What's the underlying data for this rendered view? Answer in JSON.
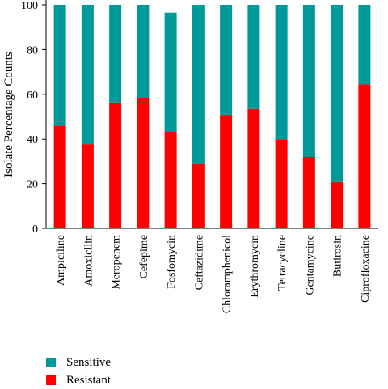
{
  "chart_data": {
    "type": "bar",
    "stacked": true,
    "ylabel": "Isolate Percentage Counts",
    "xlabel": "",
    "ylim": [
      0,
      100
    ],
    "yticks": [
      0,
      20,
      40,
      60,
      80,
      100
    ],
    "grid": false,
    "legend_position": "bottom-left",
    "categories": [
      "Ampiciline",
      "Amoxicllin",
      "Meropenem",
      "Cefepime",
      "Fosfomycin",
      "Ceftazidime",
      "Chloramphenicol",
      "Erythromycin",
      "Tetracycline",
      "Gentamycine",
      "Butirosin",
      "Ciprofloxacine"
    ],
    "series": [
      {
        "name": "Resistant",
        "color": "#ff0000",
        "values": [
          46,
          37.5,
          56,
          58.5,
          43,
          29,
          50.5,
          53.5,
          40,
          32,
          21,
          64.5
        ]
      },
      {
        "name": "Sensitive",
        "color": "#009999",
        "values": [
          54,
          62.5,
          44,
          41.5,
          53.5,
          71,
          49.5,
          46.5,
          60,
          68,
          79,
          35.5
        ]
      }
    ]
  }
}
